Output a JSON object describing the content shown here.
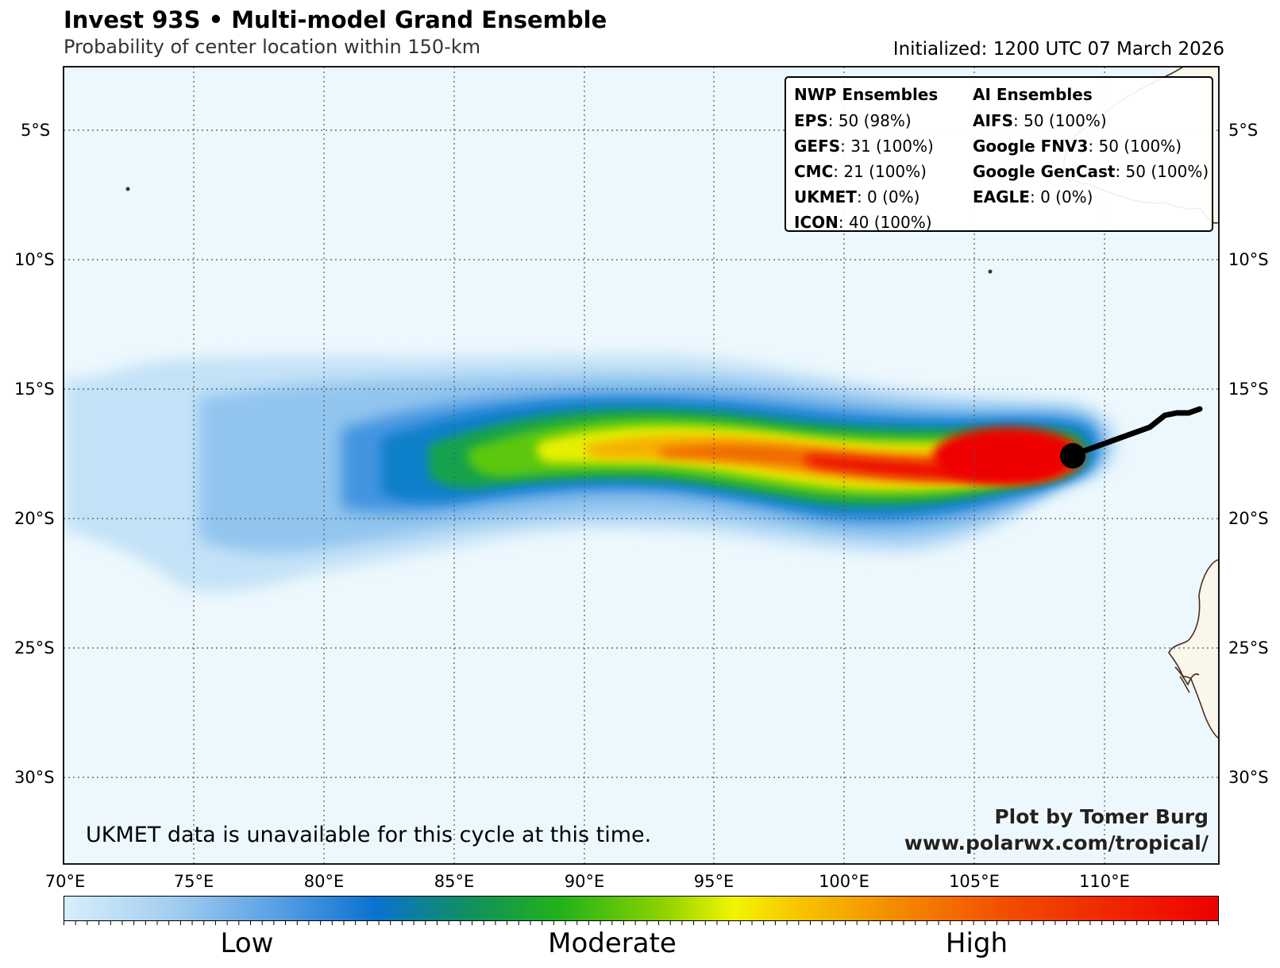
{
  "header": {
    "title": "Invest 93S • Multi-model Grand Ensemble",
    "subtitle": "Probability of center location within 150-km",
    "initialized": "Initialized: 1200 UTC 07 March 2026"
  },
  "map": {
    "lat_labels": [
      "5°S",
      "10°S",
      "15°S",
      "20°S",
      "25°S",
      "30°S"
    ],
    "lon_labels": [
      "70°E",
      "75°E",
      "80°E",
      "85°E",
      "90°E",
      "95°E",
      "100°E",
      "105°E",
      "110°E"
    ],
    "colors": {
      "ocean": "#ecf8fd",
      "land": "#fbf6ec",
      "coast": "#4a2f1d",
      "track": "#000000",
      "grid": "#555555"
    }
  },
  "legend": {
    "nwp_header": "NWP Ensembles",
    "ai_header": "AI Ensembles",
    "nwp": [
      {
        "name": "EPS",
        "value": ": 50 (98%)"
      },
      {
        "name": "GEFS",
        "value": ": 31 (100%)"
      },
      {
        "name": "CMC",
        "value": ": 21 (100%)"
      },
      {
        "name": "UKMET",
        "value": ": 0 (0%)"
      },
      {
        "name": "ICON",
        "value": ": 40 (100%)"
      }
    ],
    "ai": [
      {
        "name": "AIFS",
        "value": ": 50 (100%)"
      },
      {
        "name": "Google FNV3",
        "value": ": 50 (100%)"
      },
      {
        "name": "Google GenCast",
        "value": ": 50 (100%)"
      },
      {
        "name": "EAGLE",
        "value": ": 0 (0%)"
      }
    ]
  },
  "note": "UKMET data is unavailable for this cycle at this time.",
  "credit": {
    "line1": "Plot by Tomer Burg",
    "line2": "www.polarwx.com/tropical/"
  },
  "colorbar": {
    "low": "Low",
    "moderate": "Moderate",
    "high": "High"
  }
}
